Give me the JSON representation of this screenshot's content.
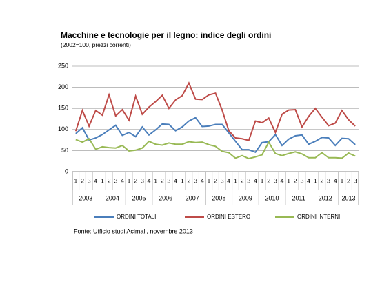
{
  "chart_data": {
    "type": "line",
    "title": "Macchine e tecnologie per il legno: indice degli ordini",
    "subtitle": "(2002=100, prezzi correnti)",
    "source": "Fonte: Ufficio studi Acimall, novembre 2013",
    "categories": [
      "1",
      "2",
      "3",
      "4",
      "1",
      "2",
      "3",
      "4",
      "1",
      "2",
      "3",
      "4",
      "1",
      "2",
      "3",
      "4",
      "1",
      "2",
      "3",
      "4",
      "1",
      "2",
      "3",
      "4",
      "1",
      "2",
      "3",
      "4",
      "1",
      "2",
      "3",
      "4",
      "1",
      "2",
      "3",
      "4",
      "1",
      "2",
      "3",
      "4",
      "1",
      "2",
      "3"
    ],
    "years": [
      "2003",
      "2004",
      "2005",
      "2006",
      "2007",
      "2008",
      "2009",
      "2010",
      "2011",
      "2012",
      "2013"
    ],
    "series": [
      {
        "name": "ORDINI TOTALI",
        "color": "#4a7ebb",
        "values": [
          90,
          104,
          75,
          80,
          88,
          99,
          110,
          86,
          93,
          83,
          106,
          87,
          99,
          113,
          112,
          97,
          106,
          120,
          128,
          107,
          108,
          112,
          112,
          92,
          72,
          52,
          52,
          46,
          69,
          71,
          88,
          62,
          77,
          85,
          87,
          65,
          72,
          81,
          80,
          62,
          79,
          78,
          64
        ]
      },
      {
        "name": "ORDINI ESTERO",
        "color": "#be4b48",
        "values": [
          96,
          145,
          108,
          145,
          134,
          182,
          132,
          147,
          122,
          179,
          136,
          153,
          166,
          181,
          150,
          170,
          180,
          210,
          172,
          171,
          182,
          186,
          146,
          97,
          80,
          78,
          74,
          120,
          116,
          127,
          93,
          136,
          146,
          147,
          106,
          131,
          150,
          129,
          109,
          115,
          145,
          123,
          108
        ]
      },
      {
        "name": "ORDINI INTERNI",
        "color": "#98b954",
        "values": [
          76,
          70,
          78,
          53,
          59,
          57,
          56,
          62,
          49,
          51,
          56,
          72,
          65,
          63,
          68,
          65,
          65,
          71,
          69,
          70,
          64,
          60,
          48,
          45,
          32,
          38,
          31,
          35,
          40,
          70,
          43,
          38,
          43,
          47,
          42,
          33,
          33,
          45,
          33,
          33,
          32,
          44,
          37
        ]
      }
    ],
    "ylim": [
      0,
      250
    ],
    "yticks": [
      0,
      50,
      100,
      150,
      200,
      250
    ],
    "grid": true
  }
}
